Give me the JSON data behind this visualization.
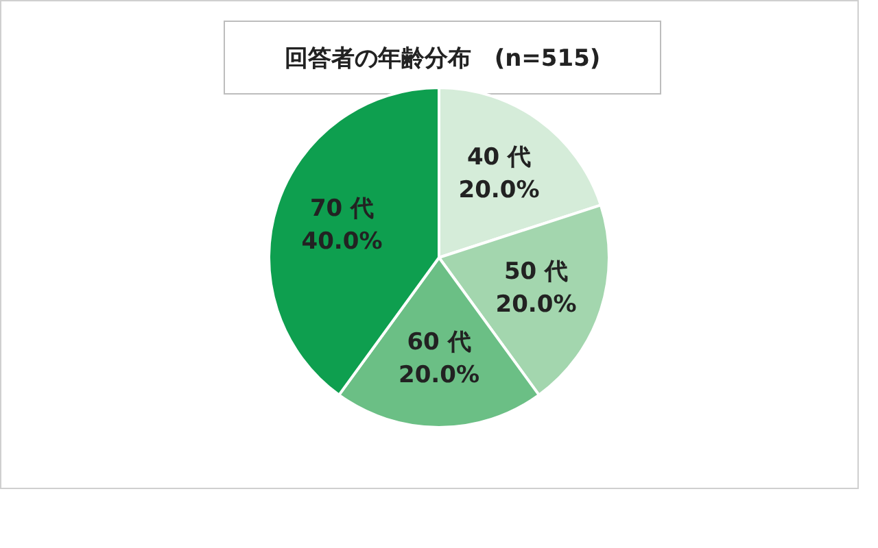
{
  "chart_data": {
    "type": "pie",
    "title": "回答者の年齢分布　(n=515)",
    "categories": [
      "40 代",
      "50 代",
      "60 代",
      "70 代"
    ],
    "values": [
      20,
      20,
      20,
      40
    ],
    "value_labels": [
      "20.0%",
      "20.0%",
      "20.0%",
      "40.0%"
    ],
    "colors": [
      "#d5ecd9",
      "#a3d6ae",
      "#6bbf85",
      "#0e9f4f"
    ],
    "legend": false
  }
}
